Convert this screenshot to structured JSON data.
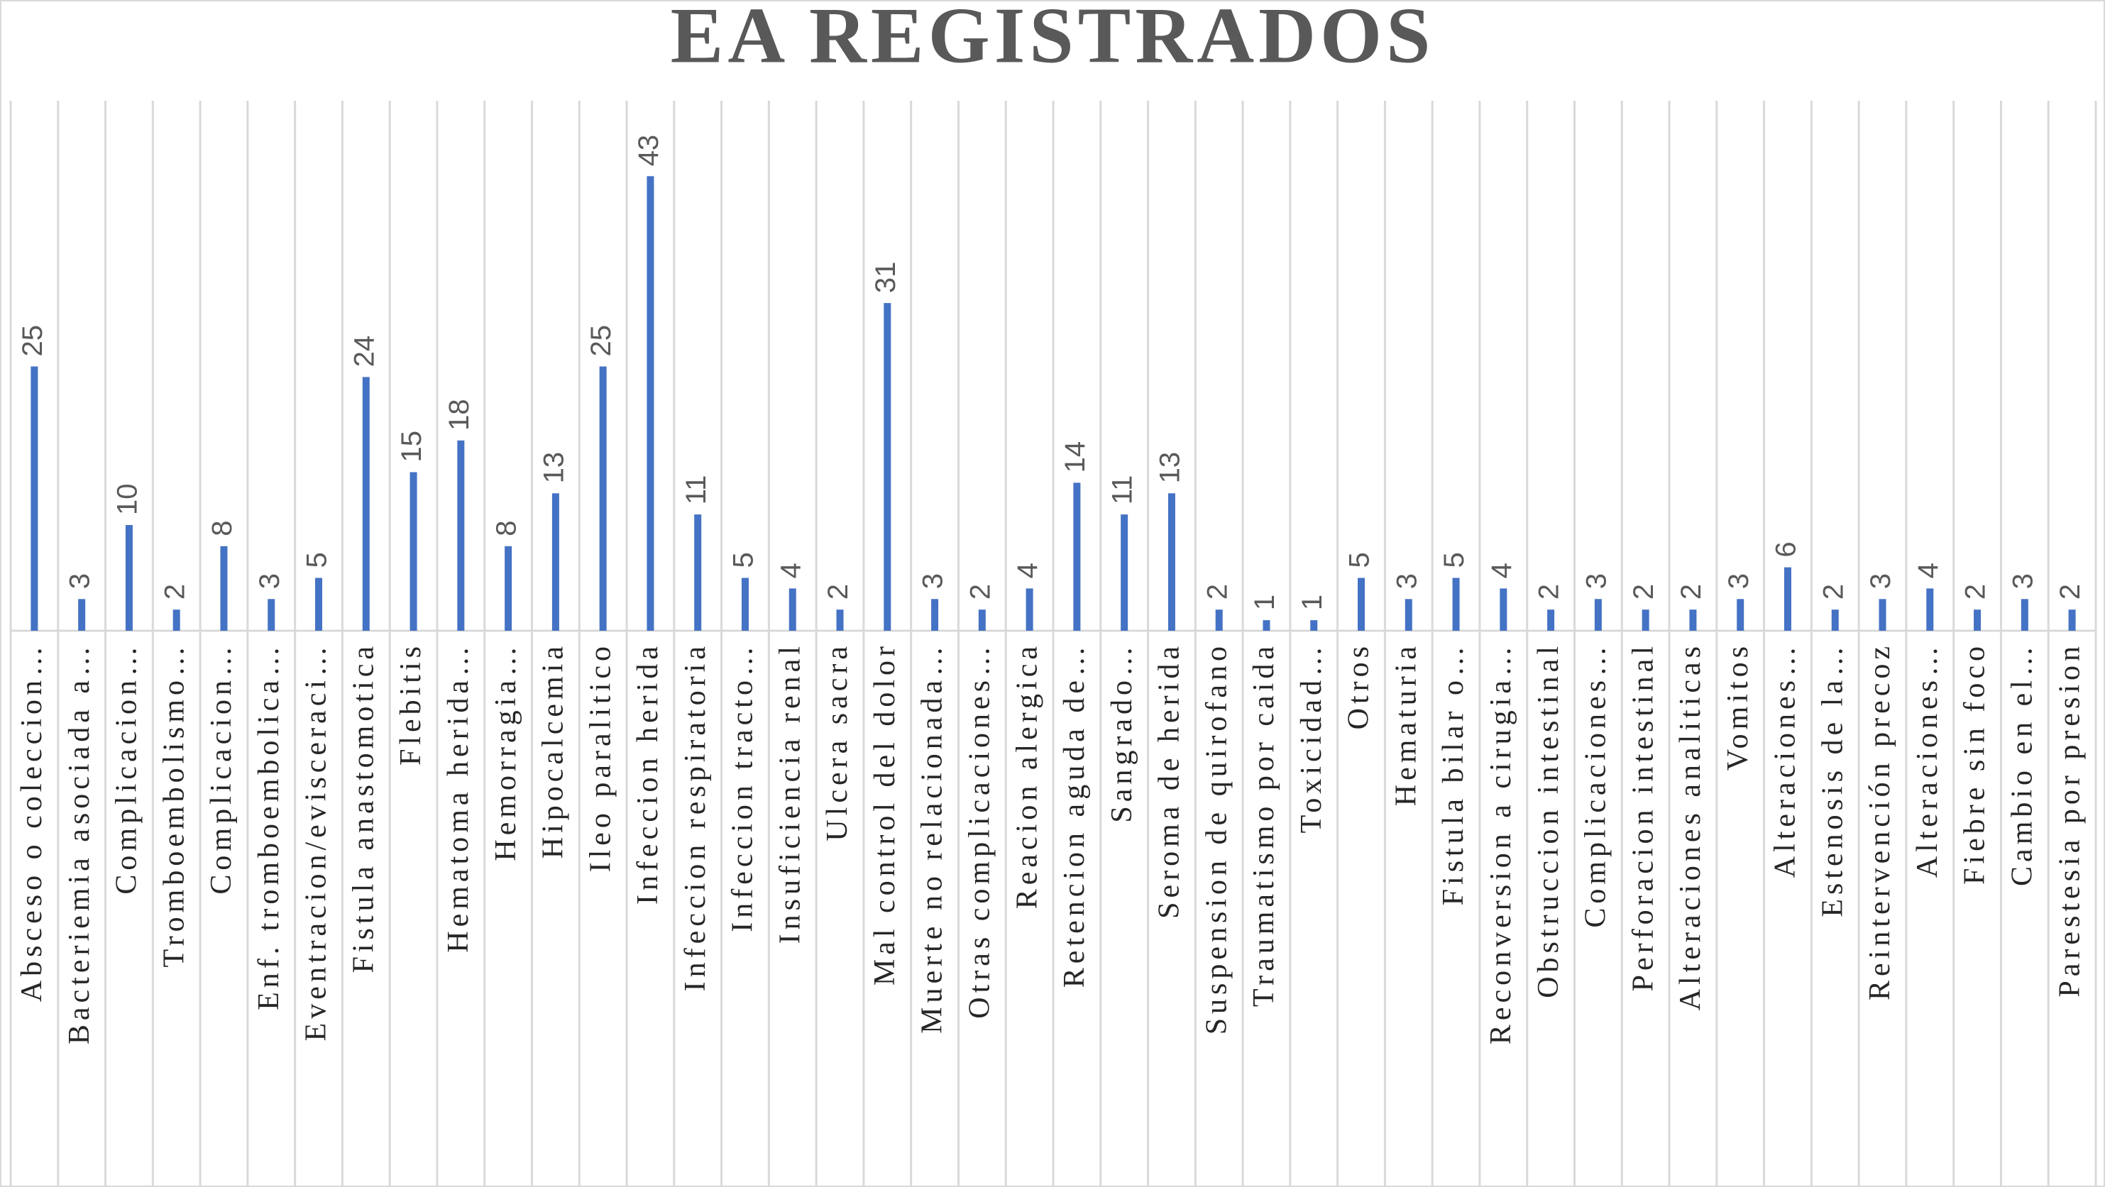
{
  "chart_data": {
    "type": "bar",
    "title": "EA REGISTRADOS",
    "color": "#4472c4",
    "grid": true,
    "categories": [
      "Absceso o coleccion…",
      "Bacteriemia asociada a…",
      "Complicacion…",
      "Tromboembolismo…",
      "Complicacion…",
      "Enf. tromboembolica…",
      "Eventracion/evisceraci…",
      "Fistula anastomotica",
      "Flebitis",
      "Hematoma herida…",
      "Hemorragia…",
      "Hipocalcemia",
      "Ileo paralitico",
      "Infeccion herida",
      "Infeccion respiratoria",
      "Infeccion tracto…",
      "Insuficiencia renal",
      "Ulcera sacra",
      "Mal control del dolor",
      "Muerte no relacionada…",
      "Otras complicaciones…",
      "Reacion alergica",
      "Retencion aguda de…",
      "Sangrado…",
      "Seroma de herida",
      "Suspension de quirofano",
      "Traumatismo por caida",
      "Toxicidad…",
      "Otros",
      "Hematuria",
      "Fistula bilar o…",
      "Reconversion a cirugia…",
      "Obstruccion intestinal",
      "Complicaciones…",
      "Perforacion intestinal",
      "Alteraciones analiticas",
      "Vomitos",
      "Alteraciones…",
      "Estenosis de la…",
      "Reintervención precoz",
      "Alteraciones…",
      "Fiebre sin foco",
      "Cambio en el…",
      "Parestesia por presion"
    ],
    "values": [
      25,
      3,
      10,
      2,
      8,
      3,
      5,
      24,
      15,
      18,
      8,
      13,
      25,
      43,
      11,
      5,
      4,
      2,
      31,
      3,
      2,
      4,
      14,
      11,
      13,
      2,
      1,
      1,
      5,
      3,
      5,
      4,
      2,
      3,
      2,
      2,
      3,
      6,
      2,
      3,
      4,
      2,
      3,
      2
    ]
  }
}
